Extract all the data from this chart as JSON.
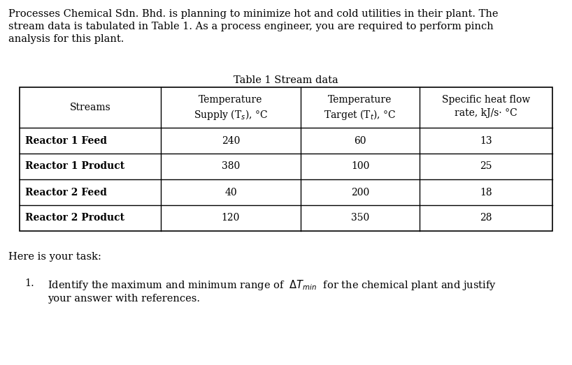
{
  "intro_text_lines": [
    "Processes Chemical Sdn. Bhd. is planning to minimize hot and cold utilities in their plant. The",
    "stream data is tabulated in Table 1. As a process engineer, you are required to perform pinch",
    "analysis for this plant."
  ],
  "table_title": "Table 1 Stream data",
  "rows": [
    [
      "Reactor 1 Feed",
      "240",
      "60",
      "13"
    ],
    [
      "Reactor 1 Product",
      "380",
      "100",
      "25"
    ],
    [
      "Reactor 2 Feed",
      "40",
      "200",
      "18"
    ],
    [
      "Reactor 2 Product",
      "120",
      "350",
      "28"
    ]
  ],
  "task_text": "Here is your task:",
  "background_color": "#ffffff",
  "text_color": "#000000",
  "font_size_body": 10.5,
  "font_size_table": 10.0
}
